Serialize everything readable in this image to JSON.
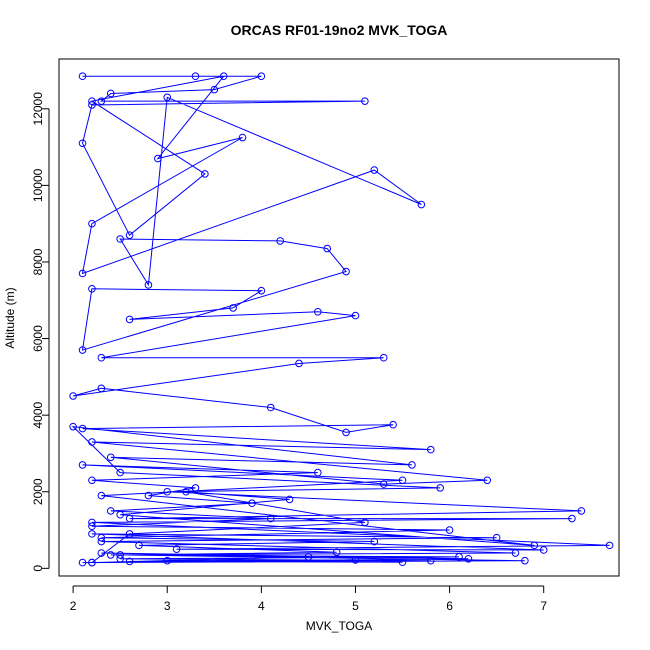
{
  "chart_data": {
    "type": "scatter",
    "title": "ORCAS RF01-19no2 MVK_TOGA",
    "xlabel": "MVK_TOGA",
    "ylabel": "Altitude (m)",
    "xlim": [
      1.85,
      7.8
    ],
    "ylim": [
      -200,
      13300
    ],
    "x_ticks": [
      2,
      3,
      4,
      5,
      6,
      7
    ],
    "y_ticks": [
      0,
      2000,
      4000,
      6000,
      8000,
      10000,
      12000
    ],
    "grid": false,
    "legend": "none",
    "color": "#0000ff",
    "marker": "open-circle",
    "connected": true,
    "series": [
      {
        "x": [
          2.1,
          3.3,
          4.0,
          3.5,
          2.4,
          2.3,
          5.1,
          2.2,
          2.1,
          2.6,
          3.4,
          2.2,
          3.6,
          2.9,
          3.8,
          2.2,
          2.1,
          5.2,
          5.7,
          3.0,
          2.8,
          2.5,
          4.2,
          4.7,
          4.9,
          2.1,
          2.2,
          4.0,
          3.7,
          2.6,
          4.6,
          5.0,
          2.3,
          5.3,
          4.4,
          2.0,
          2.3,
          4.1,
          4.9,
          5.4,
          2.1,
          5.8,
          2.2,
          6.4,
          5.3,
          2.4,
          5.6,
          2.0,
          2.5,
          5.9,
          3.0,
          7.4,
          2.6,
          7.3,
          2.2,
          7.7,
          3.1,
          7.0,
          2.2,
          6.5,
          2.3,
          6.7,
          2.4,
          6.1,
          2.5,
          5.8,
          2.6,
          5.5,
          3.0,
          5.0,
          2.2,
          4.5,
          2.3,
          6.2,
          2.1,
          6.8,
          2.5,
          4.8,
          2.7,
          5.2,
          2.3,
          6.0,
          2.2,
          4.1,
          2.4,
          3.9,
          2.8,
          3.3,
          2.2,
          4.6,
          2.1,
          5.5,
          2.3,
          6.9,
          2.5,
          4.3,
          3.2,
          5.1,
          2.6,
          2.2
        ],
        "y": [
          12850,
          12850,
          12850,
          12500,
          12400,
          12200,
          12200,
          12100,
          11100,
          8700,
          10300,
          12200,
          12850,
          10700,
          11250,
          9000,
          7700,
          10400,
          9500,
          12300,
          7400,
          8600,
          8550,
          8350,
          7750,
          5700,
          7300,
          7250,
          6800,
          6500,
          6700,
          6600,
          5500,
          5500,
          5350,
          4500,
          4700,
          4200,
          3550,
          3750,
          3650,
          3100,
          3300,
          2300,
          2200,
          2900,
          2700,
          3700,
          2500,
          2100,
          2000,
          1500,
          1300,
          1300,
          1200,
          600,
          500,
          480,
          900,
          800,
          700,
          400,
          350,
          300,
          250,
          200,
          180,
          160,
          200,
          220,
          150,
          300,
          400,
          250,
          150,
          200,
          350,
          420,
          600,
          700,
          800,
          1000,
          1100,
          1300,
          1500,
          1700,
          1900,
          2100,
          2300,
          2500,
          2700,
          2300,
          1900,
          600,
          1400,
          1800,
          2000,
          1200,
          900,
          150
        ]
      }
    ]
  }
}
